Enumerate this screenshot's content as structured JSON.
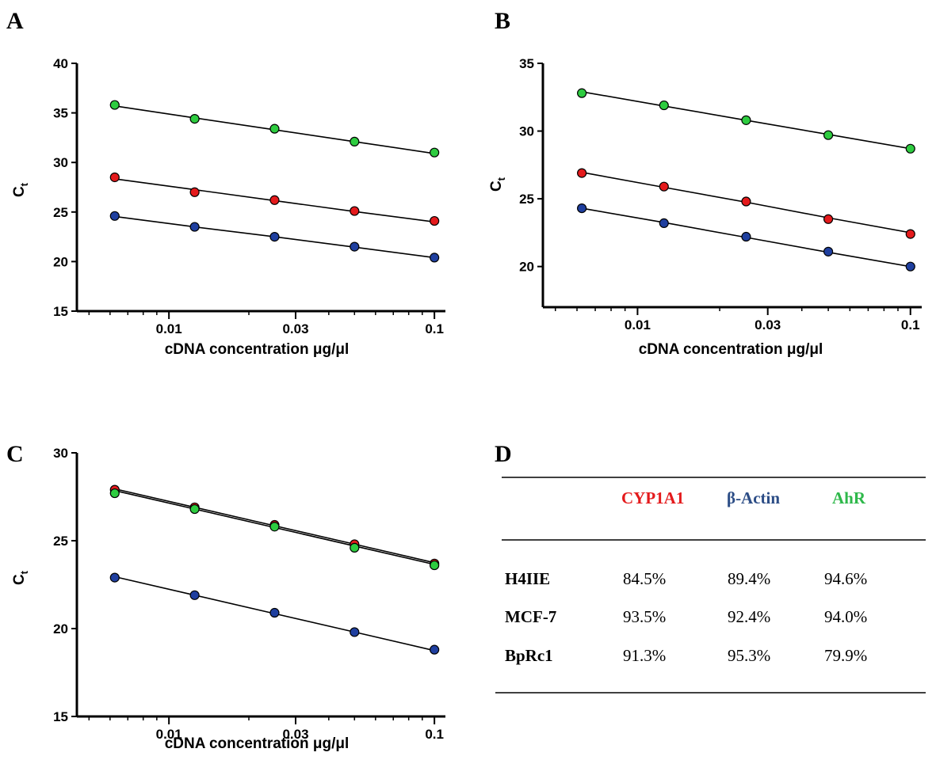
{
  "panels": [
    {
      "letter": "A",
      "ylabel": "C",
      "ylabel_sub": "t",
      "xlabel": "cDNA concentration μg/μl"
    },
    {
      "letter": "B",
      "ylabel": "C",
      "ylabel_sub": "t",
      "xlabel": "cDNA concentration μg/μl"
    },
    {
      "letter": "C",
      "ylabel": "C",
      "ylabel_sub": "t",
      "xlabel": "cDNA concentration μg/μl"
    },
    {
      "letter": "D"
    }
  ],
  "colors": {
    "cyp1a1": "#e41a1c",
    "actin": "#1f3f9f",
    "ahr": "#2ecc40",
    "actin_text": "#2c4d86",
    "ahr_text": "#2eb84a"
  },
  "chart_data": [
    {
      "type": "scatter",
      "panel": "A",
      "xlabel": "cDNA concentration μg/μl",
      "ylabel": "Ct",
      "xscale": "log",
      "xlim": [
        0.0045,
        0.11
      ],
      "ylim": [
        15,
        40
      ],
      "xticks": [
        "0.01",
        "0.03",
        "0.1"
      ],
      "yticks": [
        "15",
        "20",
        "25",
        "30",
        "35",
        "40"
      ],
      "x": [
        0.00625,
        0.0125,
        0.025,
        0.05,
        0.1
      ],
      "series": [
        {
          "color": "#2ecc40",
          "values": [
            35.8,
            34.4,
            33.4,
            32.1,
            31.0
          ],
          "fit": [
            35.7,
            34.5,
            33.3,
            32.1,
            30.9
          ]
        },
        {
          "color": "#e41a1c",
          "values": [
            28.5,
            27.0,
            26.2,
            25.1,
            24.1
          ],
          "fit": [
            28.35,
            27.25,
            26.15,
            25.05,
            24.0
          ]
        },
        {
          "color": "#1f3f9f",
          "values": [
            24.6,
            23.5,
            22.5,
            21.5,
            20.4
          ],
          "fit": [
            24.55,
            23.5,
            22.5,
            21.45,
            20.4
          ]
        }
      ]
    },
    {
      "type": "scatter",
      "panel": "B",
      "xlabel": "cDNA concentration μg/μl",
      "ylabel": "Ct",
      "xscale": "log",
      "xlim": [
        0.0045,
        0.11
      ],
      "ylim": [
        17,
        35
      ],
      "xticks": [
        "0.01",
        "0.03",
        "0.1"
      ],
      "yticks": [
        "20",
        "25",
        "30",
        "35"
      ],
      "x": [
        0.00625,
        0.0125,
        0.025,
        0.05,
        0.1
      ],
      "series": [
        {
          "color": "#2ecc40",
          "values": [
            32.8,
            31.9,
            30.8,
            29.7,
            28.7
          ],
          "fit": [
            32.9,
            31.85,
            30.8,
            29.75,
            28.7
          ]
        },
        {
          "color": "#e41a1c",
          "values": [
            26.9,
            25.9,
            24.8,
            23.5,
            22.4
          ],
          "fit": [
            26.95,
            25.85,
            24.75,
            23.6,
            22.5
          ]
        },
        {
          "color": "#1f3f9f",
          "values": [
            24.3,
            23.2,
            22.2,
            21.1,
            20.0
          ],
          "fit": [
            24.3,
            23.25,
            22.15,
            21.05,
            20.0
          ]
        }
      ]
    },
    {
      "type": "scatter",
      "panel": "C",
      "xlabel": "cDNA concentration μg/μl",
      "ylabel": "Ct",
      "xscale": "log",
      "xlim": [
        0.0045,
        0.11
      ],
      "ylim": [
        15,
        30
      ],
      "xticks": [
        "0.01",
        "0.03",
        "0.1"
      ],
      "yticks": [
        "15",
        "20",
        "25",
        "30"
      ],
      "x": [
        0.00625,
        0.0125,
        0.025,
        0.05,
        0.1
      ],
      "series": [
        {
          "color": "#e41a1c",
          "values": [
            27.9,
            26.9,
            25.9,
            24.8,
            23.7
          ],
          "fit": [
            27.95,
            26.9,
            25.85,
            24.8,
            23.75
          ]
        },
        {
          "color": "#2ecc40",
          "values": [
            27.7,
            26.8,
            25.8,
            24.6,
            23.6
          ],
          "fit": [
            27.85,
            26.8,
            25.75,
            24.7,
            23.65
          ]
        },
        {
          "color": "#1f3f9f",
          "values": [
            22.9,
            21.9,
            20.9,
            19.8,
            18.8
          ],
          "fit": [
            22.95,
            21.9,
            20.85,
            19.8,
            18.75
          ]
        }
      ]
    },
    {
      "type": "table",
      "panel": "D",
      "columns": [
        "",
        "CYP1A1",
        "β-Actin",
        "AhR"
      ],
      "rows": [
        [
          "H4IIE",
          "84.5%",
          "89.4%",
          "94.6%"
        ],
        [
          "MCF-7",
          "93.5%",
          "92.4%",
          "94.0%"
        ],
        [
          "BpRc1",
          "91.3%",
          "95.3%",
          "79.9%"
        ]
      ]
    }
  ]
}
